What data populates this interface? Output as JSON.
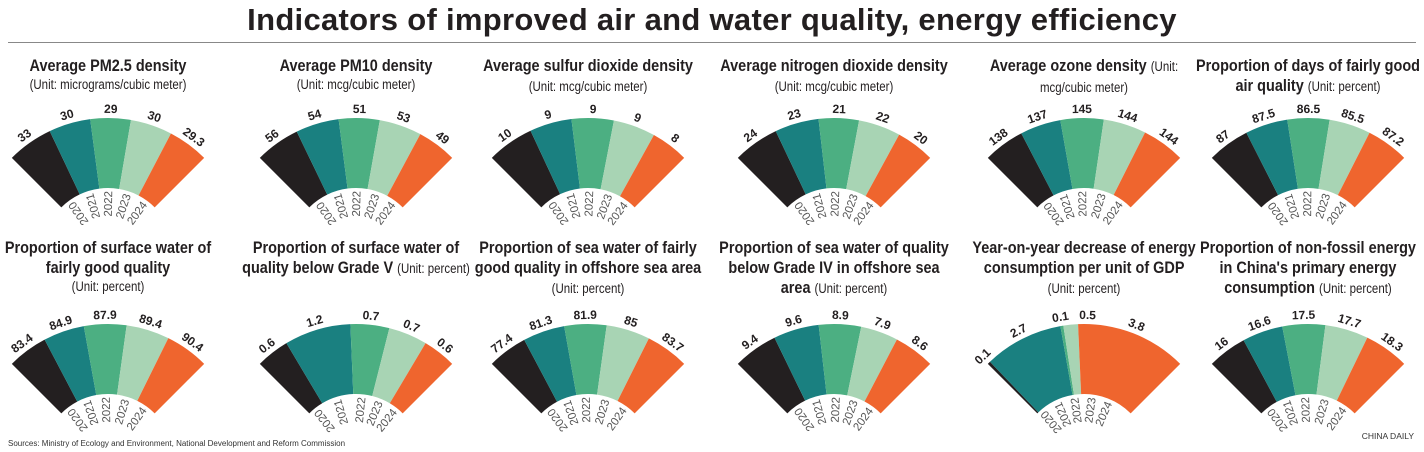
{
  "title": "Indicators of improved air and water quality, energy efficiency",
  "sources": "Sources: Ministry of Ecology and Environment, National Development and Reform Commission",
  "credit": "CHINA DAILY",
  "colors": [
    "#231f20",
    "#1a8080",
    "#4caf82",
    "#a8d4b4",
    "#ef652e"
  ],
  "chart_data": [
    {
      "type": "pie",
      "title": "Average PM2.5 density",
      "unit": "(Unit: micrograms/cubic meter)",
      "categories": [
        "2020",
        "2021",
        "2022",
        "2023",
        "2024"
      ],
      "values": [
        "33",
        "30",
        "29",
        "30",
        "29.3"
      ]
    },
    {
      "type": "pie",
      "title": "Average PM10 density",
      "unit": "(Unit: mcg/cubic meter)",
      "categories": [
        "2020",
        "2021",
        "2022",
        "2023",
        "2024"
      ],
      "values": [
        "56",
        "54",
        "51",
        "53",
        "49"
      ]
    },
    {
      "type": "pie",
      "title": "Average sulfur dioxide density",
      "unit": "(Unit: mcg/cubic meter)",
      "categories": [
        "2020",
        "2021",
        "2022",
        "2023",
        "2024"
      ],
      "values": [
        "10",
        "9",
        "9",
        "9",
        "8"
      ]
    },
    {
      "type": "pie",
      "title": "Average nitrogen dioxide density",
      "unit": "(Unit: mcg/cubic meter)",
      "categories": [
        "2020",
        "2021",
        "2022",
        "2023",
        "2024"
      ],
      "values": [
        "24",
        "23",
        "21",
        "22",
        "20"
      ]
    },
    {
      "type": "pie",
      "title": "Average ozone density",
      "unit": "(Unit: mcg/cubic meter)",
      "categories": [
        "2020",
        "2021",
        "2022",
        "2023",
        "2024"
      ],
      "values": [
        "138",
        "137",
        "145",
        "144",
        "144"
      ]
    },
    {
      "type": "pie",
      "title": "Proportion of days of fairly good air quality",
      "unit": "(Unit: percent)",
      "categories": [
        "2020",
        "2021",
        "2022",
        "2023",
        "2024"
      ],
      "values": [
        "87",
        "87.5",
        "86.5",
        "85.5",
        "87.2"
      ]
    },
    {
      "type": "pie",
      "title": "Proportion of surface water of fairly good quality",
      "unit": "(Unit: percent)",
      "categories": [
        "2020",
        "2021",
        "2022",
        "2023",
        "2024"
      ],
      "values": [
        "83.4",
        "84.9",
        "87.9",
        "89.4",
        "90.4"
      ]
    },
    {
      "type": "pie",
      "title": "Proportion of surface water of quality below Grade V",
      "unit": "(Unit: percent)",
      "categories": [
        "2020",
        "2021",
        "2022",
        "2023",
        "2024"
      ],
      "values": [
        "0.6",
        "1.2",
        "0.7",
        "0.7",
        "0.6"
      ]
    },
    {
      "type": "pie",
      "title": "Proportion of sea water of fairly good quality in offshore sea area",
      "unit": "(Unit: percent)",
      "categories": [
        "2020",
        "2021",
        "2022",
        "2023",
        "2024"
      ],
      "values": [
        "77.4",
        "81.3",
        "81.9",
        "85",
        "83.7"
      ]
    },
    {
      "type": "pie",
      "title": "Proportion of sea water of quality below Grade IV in offshore sea area",
      "unit": "(Unit: percent)",
      "categories": [
        "2020",
        "2021",
        "2022",
        "2023",
        "2024"
      ],
      "values": [
        "9.4",
        "9.6",
        "8.9",
        "7.9",
        "8.6"
      ]
    },
    {
      "type": "pie",
      "title": "Year-on-year decrease of energy consumption per unit of GDP",
      "unit": "(Unit: percent)",
      "categories": [
        "2020",
        "2021",
        "2022",
        "2023",
        "2024"
      ],
      "values": [
        "0.1",
        "2.7",
        "0.1",
        "0.5",
        "3.8"
      ]
    },
    {
      "type": "pie",
      "title": "Proportion of non-fossil energy in China's primary energy consumption",
      "unit": "(Unit: percent)",
      "categories": [
        "2020",
        "2021",
        "2022",
        "2023",
        "2024"
      ],
      "values": [
        "16",
        "16.6",
        "17.5",
        "17.7",
        "18.3"
      ]
    }
  ]
}
